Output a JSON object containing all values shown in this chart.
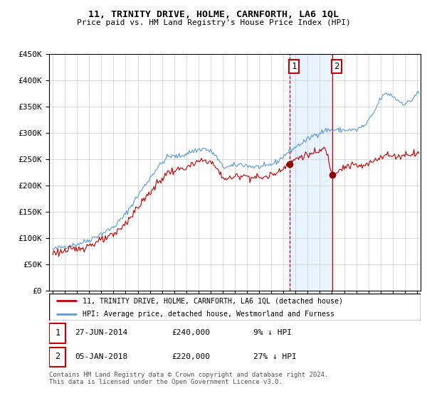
{
  "title": "11, TRINITY DRIVE, HOLME, CARNFORTH, LA6 1QL",
  "subtitle": "Price paid vs. HM Land Registry's House Price Index (HPI)",
  "legend_line1": "11, TRINITY DRIVE, HOLME, CARNFORTH, LA6 1QL (detached house)",
  "legend_line2": "HPI: Average price, detached house, Westmorland and Furness",
  "transaction1_date": "27-JUN-2014",
  "transaction1_price": "£240,000",
  "transaction1_hpi": "9% ↓ HPI",
  "transaction2_date": "05-JAN-2018",
  "transaction2_price": "£220,000",
  "transaction2_hpi": "27% ↓ HPI",
  "footer": "Contains HM Land Registry data © Crown copyright and database right 2024.\nThis data is licensed under the Open Government Licence v3.0.",
  "hpi_color": "#5b9bd5",
  "price_color": "#c00000",
  "marker_color": "#8b0000",
  "vline1_color": "#cc0000",
  "vline2_color": "#cc0000",
  "shade_color": "#ddeeff",
  "ylim": [
    0,
    450000
  ],
  "yticks": [
    0,
    50000,
    100000,
    150000,
    200000,
    250000,
    300000,
    350000,
    400000,
    450000
  ],
  "transaction1_x": 2014.49,
  "transaction2_x": 2018.02,
  "t1_y": 240000,
  "t2_y": 220000,
  "background_color": "#ffffff",
  "grid_color": "#cccccc",
  "xmin": 1994.7,
  "xmax": 2025.3
}
